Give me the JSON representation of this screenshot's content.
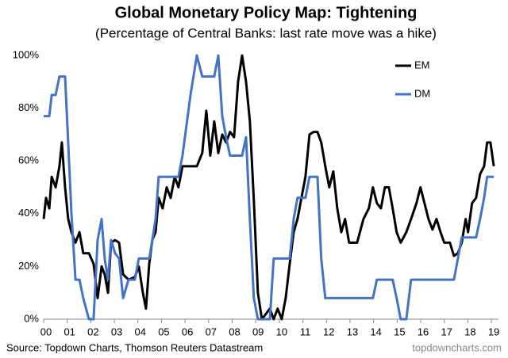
{
  "chart_data": {
    "type": "line",
    "title": "Global Monetary Policy Map: Tightening",
    "subtitle": "(Percentage of Central Banks: last rate move was a hike)",
    "source": "Source: Topdown Charts, Thomson Reuters Datastream",
    "credit": "topdowncharts.com",
    "x": [
      2000.0,
      2000.1,
      2000.24,
      2000.34,
      2000.51,
      2000.67,
      2000.77,
      2000.91,
      2001.04,
      2001.18,
      2001.35,
      2001.52,
      2001.68,
      2001.92,
      2002.12,
      2002.29,
      2002.46,
      2002.59,
      2002.73,
      2002.86,
      2003.03,
      2003.2,
      2003.37,
      2003.6,
      2003.87,
      2004.04,
      2004.21,
      2004.34,
      2004.48,
      2004.61,
      2004.75,
      2004.88,
      2005.05,
      2005.22,
      2005.39,
      2005.56,
      2005.72,
      2005.89,
      2006.23,
      2006.5,
      2006.73,
      2006.9,
      2007.07,
      2007.24,
      2007.41,
      2007.58,
      2007.74,
      2007.91,
      2008.08,
      2008.25,
      2008.42,
      2008.59,
      2008.75,
      2008.92,
      2009.09,
      2009.26,
      2009.43,
      2009.6,
      2009.76,
      2009.93,
      2010.1,
      2010.27,
      2010.44,
      2010.61,
      2010.77,
      2010.94,
      2011.11,
      2011.28,
      2011.45,
      2011.62,
      2011.78,
      2011.95,
      2012.12,
      2012.29,
      2012.46,
      2012.63,
      2012.79,
      2012.96,
      2013.3,
      2013.57,
      2013.8,
      2013.97,
      2014.14,
      2014.31,
      2014.48,
      2014.65,
      2014.81,
      2014.98,
      2015.15,
      2015.39,
      2015.59,
      2015.82,
      2015.99,
      2016.16,
      2016.33,
      2016.5,
      2016.67,
      2016.84,
      2017.0,
      2017.24,
      2017.41,
      2017.58,
      2017.74,
      2017.91,
      2018.01,
      2018.18,
      2018.35,
      2018.52,
      2018.69,
      2018.82,
      2018.96,
      2019.1
    ],
    "series": [
      {
        "name": "EM",
        "color": "#000000",
        "values": [
          38,
          46,
          42,
          54,
          50,
          58,
          67,
          50,
          38,
          33,
          29,
          33,
          25,
          25,
          21,
          8,
          20,
          17,
          10,
          29,
          30,
          29,
          17,
          15,
          16,
          20,
          10,
          4,
          21,
          30,
          33,
          46,
          42,
          50,
          46,
          54,
          50,
          58,
          58,
          58,
          63,
          79,
          62,
          75,
          63,
          70,
          67,
          71,
          69,
          90,
          100,
          90,
          75,
          45,
          10,
          0,
          2,
          4,
          0,
          4,
          0,
          8,
          21,
          33,
          38,
          46,
          54,
          70,
          71,
          71,
          67,
          58,
          50,
          56,
          42,
          33,
          38,
          29,
          29,
          38,
          42,
          50,
          44,
          42,
          50,
          50,
          42,
          33,
          29,
          33,
          38,
          44,
          50,
          44,
          38,
          34,
          38,
          33,
          29,
          29,
          24,
          25,
          29,
          38,
          33,
          44,
          46,
          55,
          58,
          67,
          67,
          58
        ]
      },
      {
        "name": "DM",
        "color": "#4472c4",
        "values": [
          77,
          77,
          77,
          85,
          85,
          92,
          92,
          92,
          67,
          40,
          15,
          15,
          8,
          0,
          0,
          30,
          38,
          23,
          15,
          30,
          25,
          23,
          8,
          15,
          15,
          23,
          23,
          23,
          23,
          30,
          38,
          54,
          54,
          54,
          54,
          54,
          54,
          62,
          85,
          100,
          92,
          92,
          92,
          92,
          100,
          77,
          69,
          62,
          62,
          62,
          62,
          69,
          38,
          8,
          0,
          0,
          0,
          0,
          23,
          23,
          23,
          23,
          23,
          38,
          46,
          46,
          46,
          54,
          54,
          54,
          23,
          8,
          8,
          8,
          8,
          8,
          8,
          8,
          8,
          8,
          8,
          8,
          15,
          15,
          15,
          15,
          15,
          8,
          0,
          0,
          15,
          15,
          15,
          15,
          15,
          15,
          15,
          15,
          15,
          15,
          15,
          23,
          31,
          31,
          31,
          31,
          31,
          38,
          46,
          54,
          54,
          54
        ]
      }
    ],
    "xlim": [
      2000,
      2019.3
    ],
    "xticks": [
      {
        "value": 2000,
        "label": "00"
      },
      {
        "value": 2001,
        "label": "01"
      },
      {
        "value": 2002,
        "label": "02"
      },
      {
        "value": 2003,
        "label": "03"
      },
      {
        "value": 2004,
        "label": "04"
      },
      {
        "value": 2005,
        "label": "05"
      },
      {
        "value": 2006,
        "label": "06"
      },
      {
        "value": 2007,
        "label": "07"
      },
      {
        "value": 2008,
        "label": "08"
      },
      {
        "value": 2009,
        "label": "09"
      },
      {
        "value": 2010,
        "label": "10"
      },
      {
        "value": 2011,
        "label": "11"
      },
      {
        "value": 2012,
        "label": "12"
      },
      {
        "value": 2013,
        "label": "13"
      },
      {
        "value": 2014,
        "label": "14"
      },
      {
        "value": 2015,
        "label": "15"
      },
      {
        "value": 2016,
        "label": "16"
      },
      {
        "value": 2017,
        "label": "17"
      },
      {
        "value": 2018,
        "label": "18"
      },
      {
        "value": 2019,
        "label": "19"
      }
    ],
    "ylim": [
      0,
      100
    ],
    "yticks": [
      {
        "value": 0,
        "label": "0%"
      },
      {
        "value": 20,
        "label": "20%"
      },
      {
        "value": 40,
        "label": "40%"
      },
      {
        "value": 60,
        "label": "60%"
      },
      {
        "value": 80,
        "label": "80%"
      },
      {
        "value": 100,
        "label": "100%"
      }
    ],
    "grid": false,
    "legend": "upper right"
  }
}
